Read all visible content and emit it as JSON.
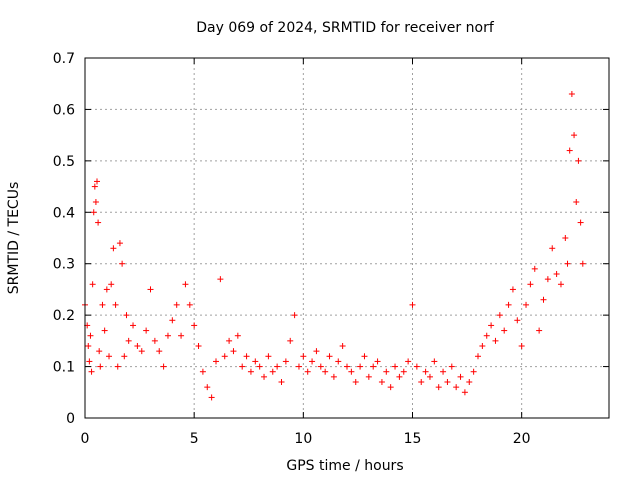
{
  "chart_data": {
    "type": "scatter",
    "title": "Day 069 of 2024, SRMTID for receiver norf",
    "xlabel": "GPS time / hours",
    "ylabel": "SRMTID / TECUs",
    "xlim": [
      0,
      24
    ],
    "ylim": [
      0,
      0.7
    ],
    "xticks": [
      0,
      5,
      10,
      15,
      20
    ],
    "xtick_labels": [
      "0",
      "5",
      "10",
      "15",
      "20"
    ],
    "yticks": [
      0,
      0.1,
      0.2,
      0.3,
      0.4,
      0.5,
      0.6,
      0.7
    ],
    "ytick_labels": [
      "0",
      "0.1",
      "0.2",
      "0.3",
      "0.4",
      "0.5",
      "0.6",
      "0.7"
    ],
    "grid": true,
    "marker": "+",
    "color": "#ff0000",
    "series": [
      {
        "name": "SRMTID",
        "points": [
          [
            0.0,
            0.22
          ],
          [
            0.1,
            0.18
          ],
          [
            0.15,
            0.14
          ],
          [
            0.2,
            0.11
          ],
          [
            0.25,
            0.16
          ],
          [
            0.3,
            0.09
          ],
          [
            0.35,
            0.26
          ],
          [
            0.4,
            0.4
          ],
          [
            0.45,
            0.45
          ],
          [
            0.5,
            0.42
          ],
          [
            0.55,
            0.46
          ],
          [
            0.6,
            0.38
          ],
          [
            0.65,
            0.13
          ],
          [
            0.7,
            0.1
          ],
          [
            0.8,
            0.22
          ],
          [
            0.9,
            0.17
          ],
          [
            1.0,
            0.25
          ],
          [
            1.1,
            0.12
          ],
          [
            1.2,
            0.26
          ],
          [
            1.3,
            0.33
          ],
          [
            1.4,
            0.22
          ],
          [
            1.5,
            0.1
          ],
          [
            1.6,
            0.34
          ],
          [
            1.7,
            0.3
          ],
          [
            1.8,
            0.12
          ],
          [
            1.9,
            0.2
          ],
          [
            2.0,
            0.15
          ],
          [
            2.2,
            0.18
          ],
          [
            2.4,
            0.14
          ],
          [
            2.6,
            0.13
          ],
          [
            2.8,
            0.17
          ],
          [
            3.0,
            0.25
          ],
          [
            3.2,
            0.15
          ],
          [
            3.4,
            0.13
          ],
          [
            3.6,
            0.1
          ],
          [
            3.8,
            0.16
          ],
          [
            4.0,
            0.19
          ],
          [
            4.2,
            0.22
          ],
          [
            4.4,
            0.16
          ],
          [
            4.6,
            0.26
          ],
          [
            4.8,
            0.22
          ],
          [
            5.0,
            0.18
          ],
          [
            5.2,
            0.14
          ],
          [
            5.4,
            0.09
          ],
          [
            5.6,
            0.06
          ],
          [
            5.8,
            0.04
          ],
          [
            6.0,
            0.11
          ],
          [
            6.2,
            0.27
          ],
          [
            6.4,
            0.12
          ],
          [
            6.6,
            0.15
          ],
          [
            6.8,
            0.13
          ],
          [
            7.0,
            0.16
          ],
          [
            7.2,
            0.1
          ],
          [
            7.4,
            0.12
          ],
          [
            7.6,
            0.09
          ],
          [
            7.8,
            0.11
          ],
          [
            8.0,
            0.1
          ],
          [
            8.2,
            0.08
          ],
          [
            8.4,
            0.12
          ],
          [
            8.6,
            0.09
          ],
          [
            8.8,
            0.1
          ],
          [
            9.0,
            0.07
          ],
          [
            9.2,
            0.11
          ],
          [
            9.4,
            0.15
          ],
          [
            9.6,
            0.2
          ],
          [
            9.8,
            0.1
          ],
          [
            10.0,
            0.12
          ],
          [
            10.2,
            0.09
          ],
          [
            10.4,
            0.11
          ],
          [
            10.6,
            0.13
          ],
          [
            10.8,
            0.1
          ],
          [
            11.0,
            0.09
          ],
          [
            11.2,
            0.12
          ],
          [
            11.4,
            0.08
          ],
          [
            11.6,
            0.11
          ],
          [
            11.8,
            0.14
          ],
          [
            12.0,
            0.1
          ],
          [
            12.2,
            0.09
          ],
          [
            12.4,
            0.07
          ],
          [
            12.6,
            0.1
          ],
          [
            12.8,
            0.12
          ],
          [
            13.0,
            0.08
          ],
          [
            13.2,
            0.1
          ],
          [
            13.4,
            0.11
          ],
          [
            13.6,
            0.07
          ],
          [
            13.8,
            0.09
          ],
          [
            14.0,
            0.06
          ],
          [
            14.2,
            0.1
          ],
          [
            14.4,
            0.08
          ],
          [
            14.6,
            0.09
          ],
          [
            14.8,
            0.11
          ],
          [
            15.0,
            0.22
          ],
          [
            15.2,
            0.1
          ],
          [
            15.4,
            0.07
          ],
          [
            15.6,
            0.09
          ],
          [
            15.8,
            0.08
          ],
          [
            16.0,
            0.11
          ],
          [
            16.2,
            0.06
          ],
          [
            16.4,
            0.09
          ],
          [
            16.6,
            0.07
          ],
          [
            16.8,
            0.1
          ],
          [
            17.0,
            0.06
          ],
          [
            17.2,
            0.08
          ],
          [
            17.4,
            0.05
          ],
          [
            17.6,
            0.07
          ],
          [
            17.8,
            0.09
          ],
          [
            18.0,
            0.12
          ],
          [
            18.2,
            0.14
          ],
          [
            18.4,
            0.16
          ],
          [
            18.6,
            0.18
          ],
          [
            18.8,
            0.15
          ],
          [
            19.0,
            0.2
          ],
          [
            19.2,
            0.17
          ],
          [
            19.4,
            0.22
          ],
          [
            19.6,
            0.25
          ],
          [
            19.8,
            0.19
          ],
          [
            20.0,
            0.14
          ],
          [
            20.2,
            0.22
          ],
          [
            20.4,
            0.26
          ],
          [
            20.6,
            0.29
          ],
          [
            20.8,
            0.17
          ],
          [
            21.0,
            0.23
          ],
          [
            21.2,
            0.27
          ],
          [
            21.4,
            0.33
          ],
          [
            21.6,
            0.28
          ],
          [
            21.8,
            0.26
          ],
          [
            22.0,
            0.35
          ],
          [
            22.1,
            0.3
          ],
          [
            22.2,
            0.52
          ],
          [
            22.3,
            0.63
          ],
          [
            22.4,
            0.55
          ],
          [
            22.5,
            0.42
          ],
          [
            22.6,
            0.5
          ],
          [
            22.7,
            0.38
          ],
          [
            22.8,
            0.3
          ]
        ]
      }
    ]
  }
}
